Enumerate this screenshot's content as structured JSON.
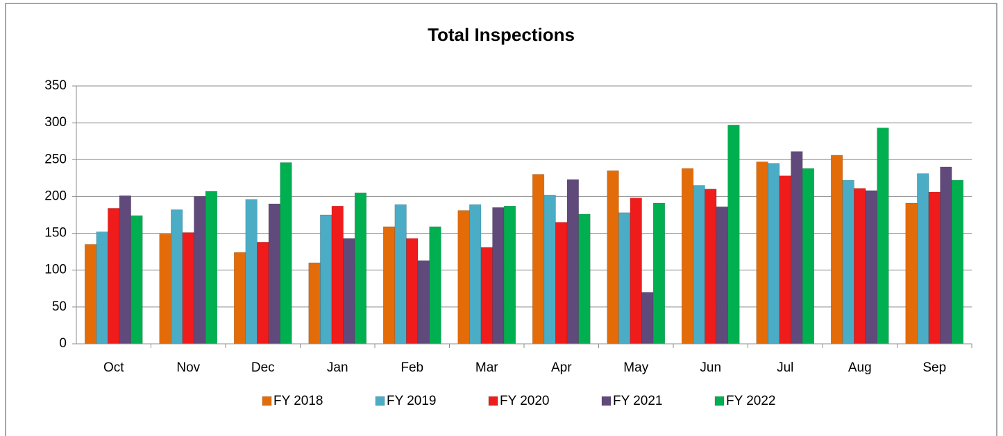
{
  "chart_data": {
    "type": "bar",
    "title": "Total Inspections",
    "categories": [
      "Oct",
      "Nov",
      "Dec",
      "Jan",
      "Feb",
      "Mar",
      "Apr",
      "May",
      "Jun",
      "Jul",
      "Aug",
      "Sep"
    ],
    "series": [
      {
        "name": "FY 2018",
        "color": "#e36c09",
        "values": [
          135,
          149,
          124,
          110,
          159,
          181,
          230,
          235,
          238,
          247,
          256,
          191
        ]
      },
      {
        "name": "FY 2019",
        "color": "#4bacc6",
        "values": [
          152,
          182,
          196,
          175,
          189,
          189,
          202,
          178,
          215,
          245,
          222,
          231
        ]
      },
      {
        "name": "FY 2020",
        "color": "#f01c1c",
        "values": [
          184,
          151,
          138,
          187,
          143,
          131,
          165,
          198,
          210,
          228,
          211,
          206
        ]
      },
      {
        "name": "FY 2021",
        "color": "#604a7b",
        "values": [
          201,
          200,
          190,
          143,
          113,
          185,
          223,
          70,
          186,
          261,
          208,
          240
        ]
      },
      {
        "name": "FY 2022",
        "color": "#00b050",
        "values": [
          174,
          207,
          246,
          205,
          159,
          187,
          176,
          191,
          297,
          238,
          293,
          222
        ]
      }
    ],
    "ylim": [
      0,
      350
    ],
    "yticks": [
      0,
      50,
      100,
      150,
      200,
      250,
      300,
      350
    ],
    "grid": true,
    "legend": "bottom"
  }
}
